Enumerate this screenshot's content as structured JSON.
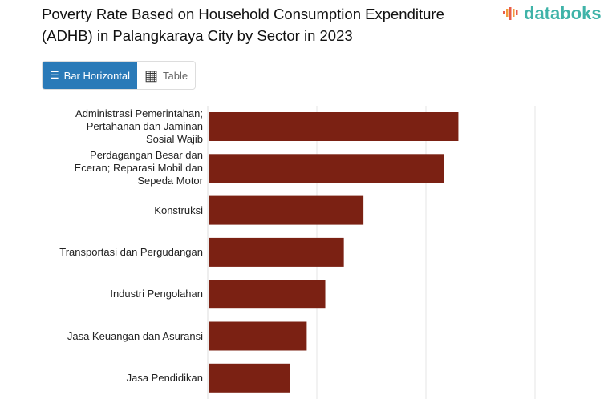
{
  "header": {
    "title": "Poverty Rate Based on Household Consumption Expenditure (ADHB) in Palangkaraya City by Sector in 2023",
    "logo": "databoks"
  },
  "tabs": [
    {
      "label": "Bar Horizontal",
      "icon": "bar-chart-icon",
      "active": true
    },
    {
      "label": "Table",
      "icon": "table-icon",
      "active": false
    }
  ],
  "chart_data": {
    "type": "bar",
    "orientation": "horizontal",
    "title": "Poverty Rate Based on Household Consumption Expenditure (ADHB) in Palangkaraya City by Sector in 2023",
    "categories": [
      "Administrasi Pemerintahan; Pertahanan dan Jaminan Sosial Wajib",
      "Perdagangan Besar dan Eceran; Reparasi Mobil dan Sepeda Motor",
      "Konstruksi",
      "Transportasi dan Pergudangan",
      "Industri Pengolahan",
      "Jasa Keuangan dan Asuransi",
      "Jasa Pendidikan"
    ],
    "values": [
      2.29,
      2.16,
      1.42,
      1.24,
      1.07,
      0.9,
      0.75
    ],
    "xlim": [
      0,
      3.54
    ],
    "grid": true,
    "bar_color": "#7b2113",
    "note": "axis tick labels not shown; values in gridline units"
  }
}
